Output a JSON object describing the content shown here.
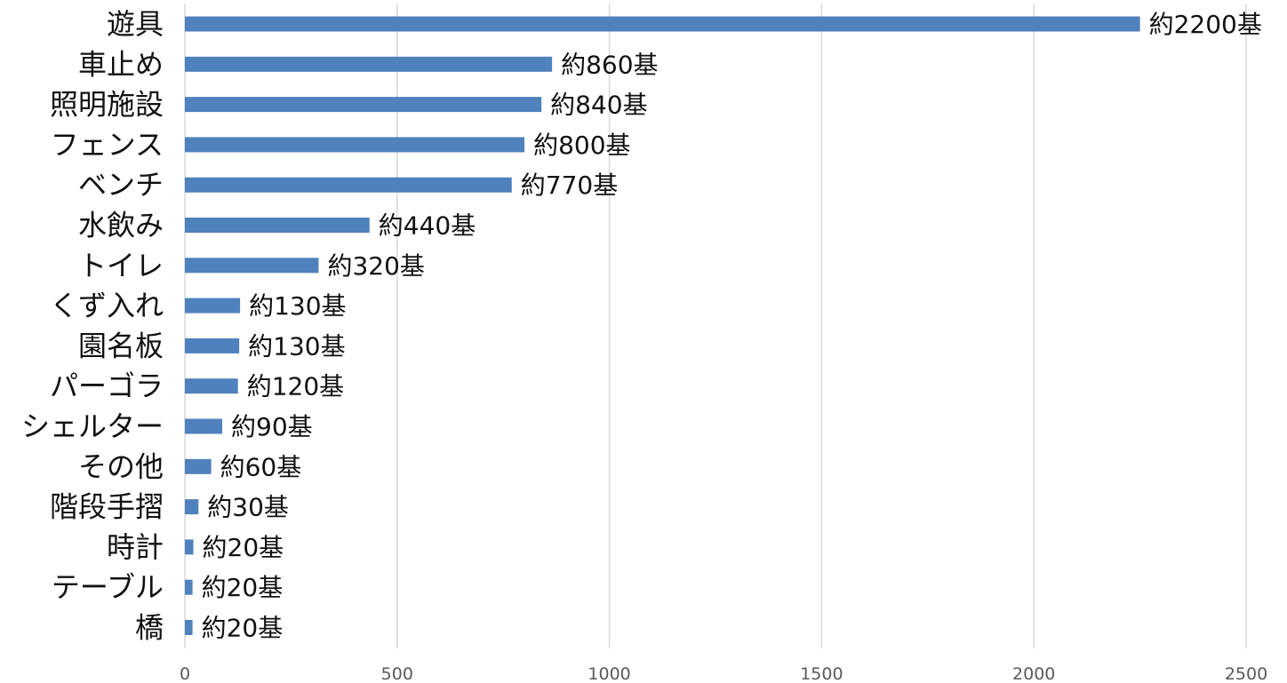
{
  "chart_data": {
    "type": "bar",
    "orientation": "horizontal",
    "title": "",
    "xlabel": "",
    "ylabel": "",
    "xlim": [
      0,
      2500
    ],
    "x_ticks": [
      0,
      500,
      1000,
      1500,
      2000,
      2500
    ],
    "x_tick_labels": [
      "0",
      "500",
      "1000",
      "1500",
      "2000",
      "2500"
    ],
    "grid": "vertical",
    "legend": "none",
    "bar_color": "#4f81bd",
    "categories": [
      "遊具",
      "車止め",
      "照明施設",
      "フェンス",
      "ベンチ",
      "水飲み",
      "トイレ",
      "くず入れ",
      "園名板",
      "パーゴラ",
      "シェルター",
      "その他",
      "階段手摺",
      "時計",
      "テーブル",
      "橋"
    ],
    "values": [
      2250,
      865,
      840,
      800,
      770,
      435,
      315,
      130,
      128,
      125,
      88,
      62,
      32,
      20,
      18,
      18
    ],
    "data_labels": [
      "約2200基",
      "約860基",
      "約840基",
      "約800基",
      "約770基",
      "約440基",
      "約320基",
      "約130基",
      "約130基",
      "約120基",
      "約90基",
      "約60基",
      "約30基",
      "約20基",
      "約20基",
      "約20基"
    ]
  }
}
